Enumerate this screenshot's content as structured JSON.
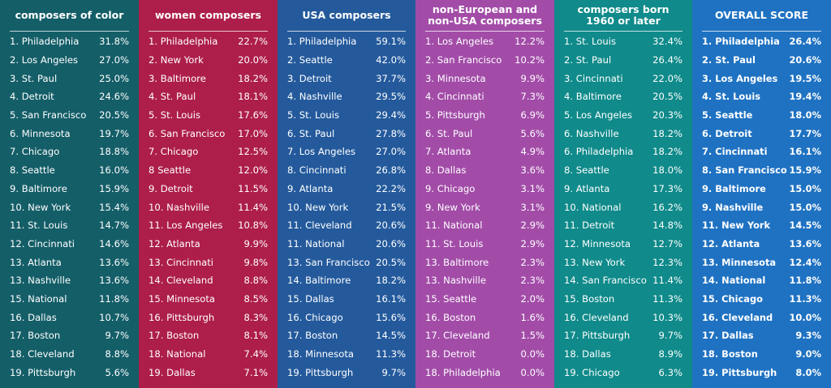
{
  "panels": [
    {
      "title": "composers of color",
      "color": "#145e68",
      "rows": [
        {
          "rank": "1.",
          "city": "Philadelphia",
          "value": "31.8%"
        },
        {
          "rank": "2.",
          "city": "Los Angeles",
          "value": "27.0%"
        },
        {
          "rank": "3.",
          "city": "St. Paul",
          "value": "25.0%"
        },
        {
          "rank": "4.",
          "city": "Detroit",
          "value": "24.6%"
        },
        {
          "rank": "5.",
          "city": "San Francisco",
          "value": "20.5%"
        },
        {
          "rank": "6.",
          "city": "Minnesota",
          "value": "19.7%"
        },
        {
          "rank": "7.",
          "city": "Chicago",
          "value": "18.8%"
        },
        {
          "rank": "8.",
          "city": "Seattle",
          "value": "16.0%"
        },
        {
          "rank": "9.",
          "city": "Baltimore",
          "value": "15.9%"
        },
        {
          "rank": "10.",
          "city": "New York",
          "value": "15.4%"
        },
        {
          "rank": "11.",
          "city": "St. Louis",
          "value": "14.7%"
        },
        {
          "rank": "12.",
          "city": "Cincinnati",
          "value": "14.6%"
        },
        {
          "rank": "13.",
          "city": "Atlanta",
          "value": "13.6%"
        },
        {
          "rank": "13.",
          "city": "Nashville",
          "value": "13.6%"
        },
        {
          "rank": "15.",
          "city": "National",
          "value": "11.8%"
        },
        {
          "rank": "16.",
          "city": "Dallas",
          "value": "10.7%"
        },
        {
          "rank": "17.",
          "city": "Boston",
          "value": "9.7%"
        },
        {
          "rank": "18.",
          "city": "Cleveland",
          "value": "8.8%"
        },
        {
          "rank": "19.",
          "city": "Pittsburgh",
          "value": "5.6%"
        }
      ]
    },
    {
      "title": "women composers",
      "color": "#ad1e4a",
      "rows": [
        {
          "rank": "1.",
          "city": "Philadelphia",
          "value": "22.7%"
        },
        {
          "rank": "2.",
          "city": "New York",
          "value": "20.0%"
        },
        {
          "rank": "3.",
          "city": "Baltimore",
          "value": "18.2%"
        },
        {
          "rank": "4.",
          "city": "St. Paul",
          "value": "18.1%"
        },
        {
          "rank": "5.",
          "city": "St. Louis",
          "value": "17.6%"
        },
        {
          "rank": "6.",
          "city": "San Francisco",
          "value": "17.0%"
        },
        {
          "rank": "7.",
          "city": "Chicago",
          "value": "12.5%"
        },
        {
          "rank": "8",
          "city": "Seattle",
          "value": "12.0%"
        },
        {
          "rank": "9.",
          "city": "Detroit",
          "value": "11.5%"
        },
        {
          "rank": "10.",
          "city": "Nashville",
          "value": "11.4%"
        },
        {
          "rank": "11.",
          "city": "Los Angeles",
          "value": "10.8%"
        },
        {
          "rank": "12.",
          "city": "Atlanta",
          "value": "9.9%"
        },
        {
          "rank": "13.",
          "city": "Cincinnati",
          "value": "9.8%"
        },
        {
          "rank": "14.",
          "city": "Cleveland",
          "value": "8.8%"
        },
        {
          "rank": "15.",
          "city": "Minnesota",
          "value": "8.5%"
        },
        {
          "rank": "16.",
          "city": "Pittsburgh",
          "value": "8.3%"
        },
        {
          "rank": "17.",
          "city": "Boston",
          "value": "8.1%"
        },
        {
          "rank": "18.",
          "city": "National",
          "value": "7.4%"
        },
        {
          "rank": "19.",
          "city": "Dallas",
          "value": "7.1%"
        }
      ]
    },
    {
      "title": "USA composers",
      "color": "#245a9c",
      "rows": [
        {
          "rank": "1.",
          "city": "Philadelphia",
          "value": "59.1%"
        },
        {
          "rank": "2.",
          "city": "Seattle",
          "value": "42.0%"
        },
        {
          "rank": "3.",
          "city": "Detroit",
          "value": "37.7%"
        },
        {
          "rank": "4.",
          "city": "Nashville",
          "value": "29.5%"
        },
        {
          "rank": "5.",
          "city": "St. Louis",
          "value": "29.4%"
        },
        {
          "rank": "6.",
          "city": "St. Paul",
          "value": "27.8%"
        },
        {
          "rank": "7.",
          "city": "Los Angeles",
          "value": "27.0%"
        },
        {
          "rank": "8.",
          "city": "Cincinnati",
          "value": "26.8%"
        },
        {
          "rank": "9.",
          "city": "Atlanta",
          "value": "22.2%"
        },
        {
          "rank": "10.",
          "city": "New York",
          "value": "21.5%"
        },
        {
          "rank": "11.",
          "city": "Cleveland",
          "value": "20.6%"
        },
        {
          "rank": "11.",
          "city": "National",
          "value": "20.6%"
        },
        {
          "rank": "13.",
          "city": "San Francisco",
          "value": "20.5%"
        },
        {
          "rank": "14.",
          "city": "Baltimore",
          "value": "18.2%"
        },
        {
          "rank": "15.",
          "city": "Dallas",
          "value": "16.1%"
        },
        {
          "rank": "16.",
          "city": "Chicago",
          "value": "15.6%"
        },
        {
          "rank": "17.",
          "city": "Boston",
          "value": "14.5%"
        },
        {
          "rank": "18.",
          "city": "Minnesota",
          "value": "11.3%"
        },
        {
          "rank": "19.",
          "city": "Pittsburgh",
          "value": "9.7%"
        }
      ]
    },
    {
      "title": "non-European and non-USA composers",
      "color": "#a24ca8",
      "rows": [
        {
          "rank": "1.",
          "city": "Los Angeles",
          "value": "12.2%"
        },
        {
          "rank": "2.",
          "city": "San Francisco",
          "value": "10.2%"
        },
        {
          "rank": "3.",
          "city": "Minnesota",
          "value": "9.9%"
        },
        {
          "rank": "4.",
          "city": "Cincinnati",
          "value": "7.3%"
        },
        {
          "rank": "5.",
          "city": "Pittsburgh",
          "value": "6.9%"
        },
        {
          "rank": "6.",
          "city": "St. Paul",
          "value": "5.6%"
        },
        {
          "rank": "7.",
          "city": "Atlanta",
          "value": "4.9%"
        },
        {
          "rank": "8.",
          "city": "Dallas",
          "value": "3.6%"
        },
        {
          "rank": "9.",
          "city": "Chicago",
          "value": "3.1%"
        },
        {
          "rank": "9.",
          "city": "New York",
          "value": "3.1%"
        },
        {
          "rank": "11.",
          "city": "National",
          "value": "2.9%"
        },
        {
          "rank": "11.",
          "city": "St. Louis",
          "value": "2.9%"
        },
        {
          "rank": "13.",
          "city": "Baltimore",
          "value": "2.3%"
        },
        {
          "rank": "13.",
          "city": "Nashville",
          "value": "2.3%"
        },
        {
          "rank": "15.",
          "city": "Seattle",
          "value": "2.0%"
        },
        {
          "rank": "16.",
          "city": "Boston",
          "value": "1.6%"
        },
        {
          "rank": "17.",
          "city": "Cleveland",
          "value": "1.5%"
        },
        {
          "rank": "18.",
          "city": "Detroit",
          "value": "0.0%"
        },
        {
          "rank": "18.",
          "city": "Philadelphia",
          "value": "0.0%"
        }
      ]
    },
    {
      "title": "composers born 1960 or later",
      "color": "#108a8a",
      "rows": [
        {
          "rank": "1.",
          "city": "St. Louis",
          "value": "32.4%"
        },
        {
          "rank": "2.",
          "city": "St. Paul",
          "value": "26.4%"
        },
        {
          "rank": "3.",
          "city": "Cincinnati",
          "value": "22.0%"
        },
        {
          "rank": "4.",
          "city": "Baltimore",
          "value": "20.5%"
        },
        {
          "rank": "5.",
          "city": "Los Angeles",
          "value": "20.3%"
        },
        {
          "rank": "6.",
          "city": "Nashville",
          "value": "18.2%"
        },
        {
          "rank": "6.",
          "city": "Philadelphia",
          "value": "18.2%"
        },
        {
          "rank": "8.",
          "city": "Seattle",
          "value": "18.0%"
        },
        {
          "rank": "9.",
          "city": "Atlanta",
          "value": "17.3%"
        },
        {
          "rank": "10.",
          "city": "National",
          "value": "16.2%"
        },
        {
          "rank": "11.",
          "city": "Detroit",
          "value": "14.8%"
        },
        {
          "rank": "12.",
          "city": "Minnesota",
          "value": "12.7%"
        },
        {
          "rank": "13.",
          "city": "New York",
          "value": "12.3%"
        },
        {
          "rank": "14.",
          "city": "San Francisco",
          "value": "11.4%"
        },
        {
          "rank": "15.",
          "city": "Boston",
          "value": "11.3%"
        },
        {
          "rank": "16.",
          "city": "Cleveland",
          "value": "10.3%"
        },
        {
          "rank": "17.",
          "city": "Pittsburgh",
          "value": "9.7%"
        },
        {
          "rank": "18.",
          "city": "Dallas",
          "value": "8.9%"
        },
        {
          "rank": "19.",
          "city": "Chicago",
          "value": "6.3%"
        }
      ]
    },
    {
      "title": "OVERALL SCORE",
      "color": "#1f72c2",
      "rows": [
        {
          "rank": "1.",
          "city": "Philadelphia",
          "value": "26.4%"
        },
        {
          "rank": "2.",
          "city": "St. Paul",
          "value": "20.6%"
        },
        {
          "rank": "3.",
          "city": "Los Angeles",
          "value": "19.5%"
        },
        {
          "rank": "4.",
          "city": "St. Louis",
          "value": "19.4%"
        },
        {
          "rank": "5.",
          "city": "Seattle",
          "value": "18.0%"
        },
        {
          "rank": "6.",
          "city": "Detroit",
          "value": "17.7%"
        },
        {
          "rank": "7.",
          "city": "Cincinnati",
          "value": "16.1%"
        },
        {
          "rank": "8.",
          "city": "San Francisco",
          "value": "15.9%"
        },
        {
          "rank": "9.",
          "city": "Baltimore",
          "value": "15.0%"
        },
        {
          "rank": "9.",
          "city": "Nashville",
          "value": "15.0%"
        },
        {
          "rank": "11.",
          "city": "New York",
          "value": "14.5%"
        },
        {
          "rank": "12.",
          "city": "Atlanta",
          "value": "13.6%"
        },
        {
          "rank": "13.",
          "city": "Minnesota",
          "value": "12.4%"
        },
        {
          "rank": "14.",
          "city": "National",
          "value": "11.8%"
        },
        {
          "rank": "15.",
          "city": "Chicago",
          "value": "11.3%"
        },
        {
          "rank": "16.",
          "city": "Cleveland",
          "value": "10.0%"
        },
        {
          "rank": "17.",
          "city": "Dallas",
          "value": "9.3%"
        },
        {
          "rank": "18.",
          "city": "Boston",
          "value": "9.0%"
        },
        {
          "rank": "19.",
          "city": "Pittsburgh",
          "value": "8.0%"
        }
      ]
    }
  ]
}
